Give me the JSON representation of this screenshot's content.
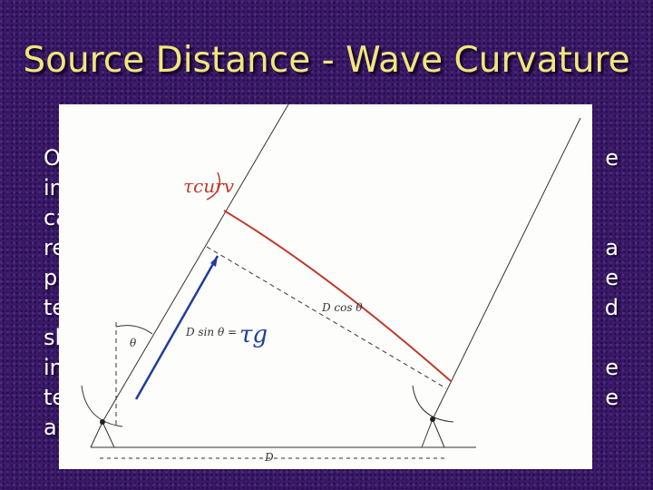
{
  "slide": {
    "title": "Source Distance - Wave Curvature",
    "body": {
      "left_fragments": [
        "O",
        "in",
        "ca",
        "re",
        "p",
        "te",
        "sl",
        "in",
        "te",
        "a"
      ],
      "right_fragments": [
        "e",
        "a",
        "e",
        "d",
        "e",
        "e"
      ]
    },
    "diagram": {
      "labels": {
        "tau_curv": "τcurv",
        "d_cos": "D cos θ",
        "d_sin": "D sin θ =",
        "tau_g": "τg",
        "theta": "θ",
        "baseline": "D"
      }
    }
  }
}
